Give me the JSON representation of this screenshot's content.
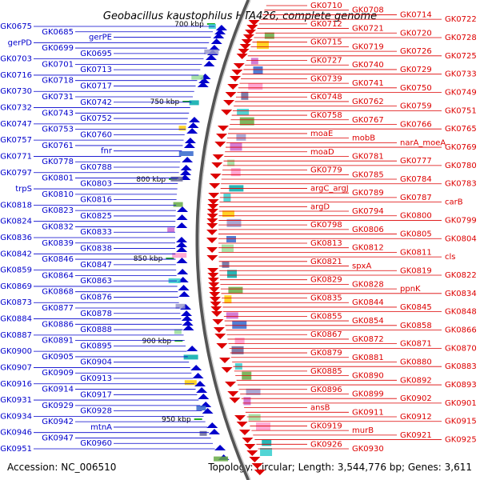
{
  "title": "Geobacillus kaustophilus HTA426, complete genome",
  "footer": {
    "accession": "Accession: NC_006510",
    "summary": "Topology: circular; Length: 3,544,776 bp; Genes: 3,611"
  },
  "colors": {
    "minus_strand": "#0000cc",
    "plus_strand": "#dd0000",
    "backbone": "#888888",
    "tick": "#22aa22"
  },
  "ticks": [
    {
      "label": "700 kbp"
    },
    {
      "label": "750 kbp"
    },
    {
      "label": "800 kbp"
    },
    {
      "label": "850 kbp"
    },
    {
      "label": "900 kbp"
    },
    {
      "label": "950 kbp"
    }
  ],
  "minus_labels": [
    "GK0675",
    "GK0685",
    "gerPE",
    "gerPD",
    "GK0699",
    "GK0695",
    "GK0703",
    "GK0701",
    "GK0713",
    "GK0716",
    "GK0718",
    "GK0717",
    "GK0730",
    "GK0731",
    "GK0742",
    "GK0732",
    "GK0743",
    "GK0752",
    "GK0747",
    "GK0753",
    "GK0760",
    "GK0757",
    "GK0761",
    "fnr",
    "GK0771",
    "GK0778",
    "GK0788",
    "GK0797",
    "GK0801",
    "GK0803",
    "trpS",
    "GK0810",
    "GK0816",
    "GK0818",
    "GK0823",
    "GK0825",
    "GK0824",
    "GK0832",
    "GK0833",
    "GK0836",
    "GK0839",
    "GK0838",
    "GK0842",
    "GK0846",
    "GK0847",
    "GK0859",
    "GK0864",
    "GK0863",
    "GK0869",
    "GK0868",
    "GK0876",
    "GK0873",
    "GK0877",
    "GK0878",
    "GK0884",
    "GK0886",
    "GK0888",
    "GK0887",
    "GK0891",
    "GK0895",
    "GK0900",
    "GK0905",
    "GK0904",
    "GK0907",
    "GK0909",
    "GK0913",
    "GK0916",
    "GK0914",
    "GK0917",
    "GK0931",
    "GK0929",
    "GK0928",
    "GK0934",
    "GK0942",
    "mtnA",
    "GK0946",
    "GK0947",
    "GK0960",
    "GK0951"
  ],
  "plus_labels": [
    "GK0710",
    "GK0708",
    "GK0714",
    "GK0722",
    "GK0712",
    "GK0721",
    "GK0720",
    "GK0728",
    "GK0715",
    "GK0719",
    "GK0726",
    "GK0725",
    "GK0727",
    "GK0740",
    "GK0729",
    "GK0733",
    "GK0739",
    "GK0741",
    "GK0750",
    "GK0749",
    "GK0748",
    "GK0762",
    "GK0759",
    "GK0751",
    "GK0758",
    "GK0767",
    "GK0766",
    "GK0765",
    "moaE",
    "mobB",
    "narA_moeA",
    "GK0769",
    "moaD",
    "GK0781",
    "GK0777",
    "GK0780",
    "GK0779",
    "GK0785",
    "GK0784",
    "GK0783",
    "argC_argJ",
    "GK0789",
    "GK0787",
    "carB",
    "argD",
    "GK0794",
    "GK0800",
    "GK0799",
    "GK0798",
    "GK0806",
    "GK0805",
    "GK0804",
    "GK0813",
    "GK0812",
    "GK0811",
    "cls",
    "GK0821",
    "spxA",
    "GK0819",
    "GK0822",
    "GK0829",
    "GK0828",
    "ppnK",
    "GK0834",
    "GK0835",
    "GK0844",
    "GK0845",
    "GK0848",
    "GK0855",
    "GK0854",
    "GK0858",
    "GK0866",
    "GK0867",
    "GK0872",
    "GK0871",
    "GK0870",
    "GK0879",
    "GK0881",
    "GK0880",
    "GK0883",
    "GK0885",
    "GK0890",
    "GK0892",
    "GK0893",
    "GK0896",
    "GK0899",
    "GK0902",
    "GK0901",
    "ansB",
    "GK0911",
    "GK0912",
    "GK0915",
    "GK0919",
    "murB",
    "GK0921",
    "GK0925",
    "GK0926",
    "GK0930"
  ]
}
